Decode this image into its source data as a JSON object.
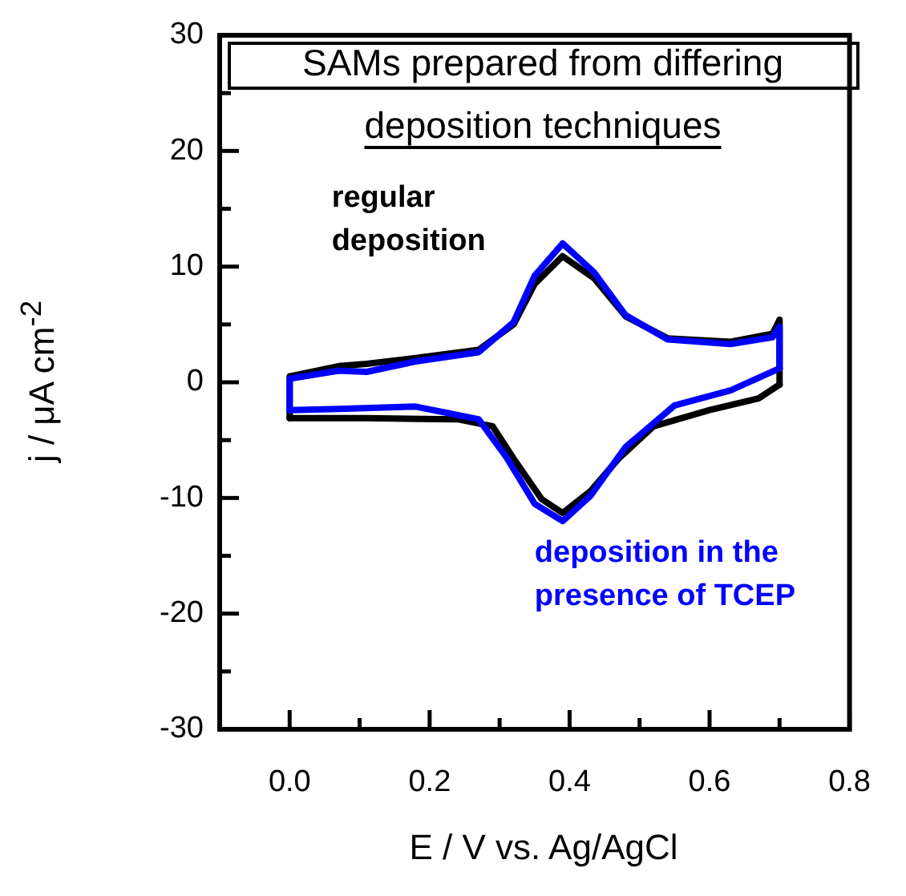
{
  "chart_data": {
    "type": "line",
    "xlabel": "E / V vs. Ag/AgCl",
    "ylabel": "j / μA cm$^{-2}$",
    "annotations": [
      "SAMs prepared from differing deposition techniques"
    ],
    "xlim": [
      -0.1,
      0.8
    ],
    "ylim": [
      -30,
      30
    ],
    "xticks": [
      {
        "value": 0,
        "label": "0.0"
      },
      {
        "value": 0.1,
        "label": null
      },
      {
        "value": 0.2,
        "label": "0.2"
      },
      {
        "value": 0.3,
        "label": null
      },
      {
        "value": 0.4,
        "label": "0.4"
      },
      {
        "value": 0.5,
        "label": null
      },
      {
        "value": 0.6,
        "label": "0.6"
      },
      {
        "value": 0.7,
        "label": null
      },
      {
        "value": 0.8,
        "label": "0.8"
      }
    ],
    "yticks": [
      -30,
      {
        "value": -25,
        "label": null
      },
      -20,
      {
        "value": -15,
        "label": null
      },
      -10,
      {
        "value": -5,
        "label": null
      },
      0,
      {
        "value": 5,
        "label": null
      },
      10,
      {
        "value": 15,
        "label": null
      },
      20,
      {
        "value": 25,
        "label": null
      },
      30
    ],
    "legend": false,
    "marker": "none",
    "line_style": "solid",
    "series": [
      {
        "name": "deposition in the presence of TCEP",
        "color": "#0000ff",
        "x": [
          0,
          0,
          0.07,
          0.11,
          0.18,
          0.27,
          0.32,
          0.35,
          0.39,
          0.435,
          0.48,
          0.54,
          0.63,
          0.69,
          0.7,
          0.7
        ],
        "values": [
          -2.4,
          0.3,
          1.0,
          0.9,
          1.8,
          2.6,
          5.2,
          9.2,
          12,
          9.5,
          5.8,
          3.7,
          3.3,
          3.9,
          4.8,
          1.2
        ]
      },
      {
        "color": "#0000ff",
        "x": [
          0,
          0.07,
          0.18,
          0.27,
          0.31,
          0.35,
          0.39,
          0.43,
          0.48,
          0.55,
          0.63,
          0.7
        ],
        "values": [
          -2.4,
          -2.3,
          -2.1,
          -3.2,
          -6.5,
          -10.5,
          -12,
          -9.8,
          -5.6,
          -2.0,
          -0.7,
          1.2
        ]
      },
      {
        "name": "regular deposition",
        "color": "#000000",
        "x": [
          0,
          0,
          0.07,
          0.11,
          0.18,
          0.27,
          0.32,
          0.35,
          0.39,
          0.435,
          0.48,
          0.54,
          0.63,
          0.69,
          0.7,
          0.7
        ],
        "values": [
          -3.1,
          0.5,
          1.4,
          1.6,
          2.1,
          2.8,
          5,
          8.5,
          10.9,
          9,
          5.7,
          3.8,
          3.5,
          4.2,
          5.4,
          -0.2
        ]
      },
      {
        "color": "#000000",
        "x": [
          0,
          0.11,
          0.24,
          0.29,
          0.32,
          0.36,
          0.39,
          0.43,
          0.47,
          0.52,
          0.6,
          0.67,
          0.7
        ],
        "values": [
          -3.1,
          -3.1,
          -3.2,
          -3.8,
          -6.6,
          -10.1,
          -11.3,
          -9.4,
          -6.6,
          -3.8,
          -2.4,
          -1.4,
          -0.2
        ]
      }
    ]
  }
}
